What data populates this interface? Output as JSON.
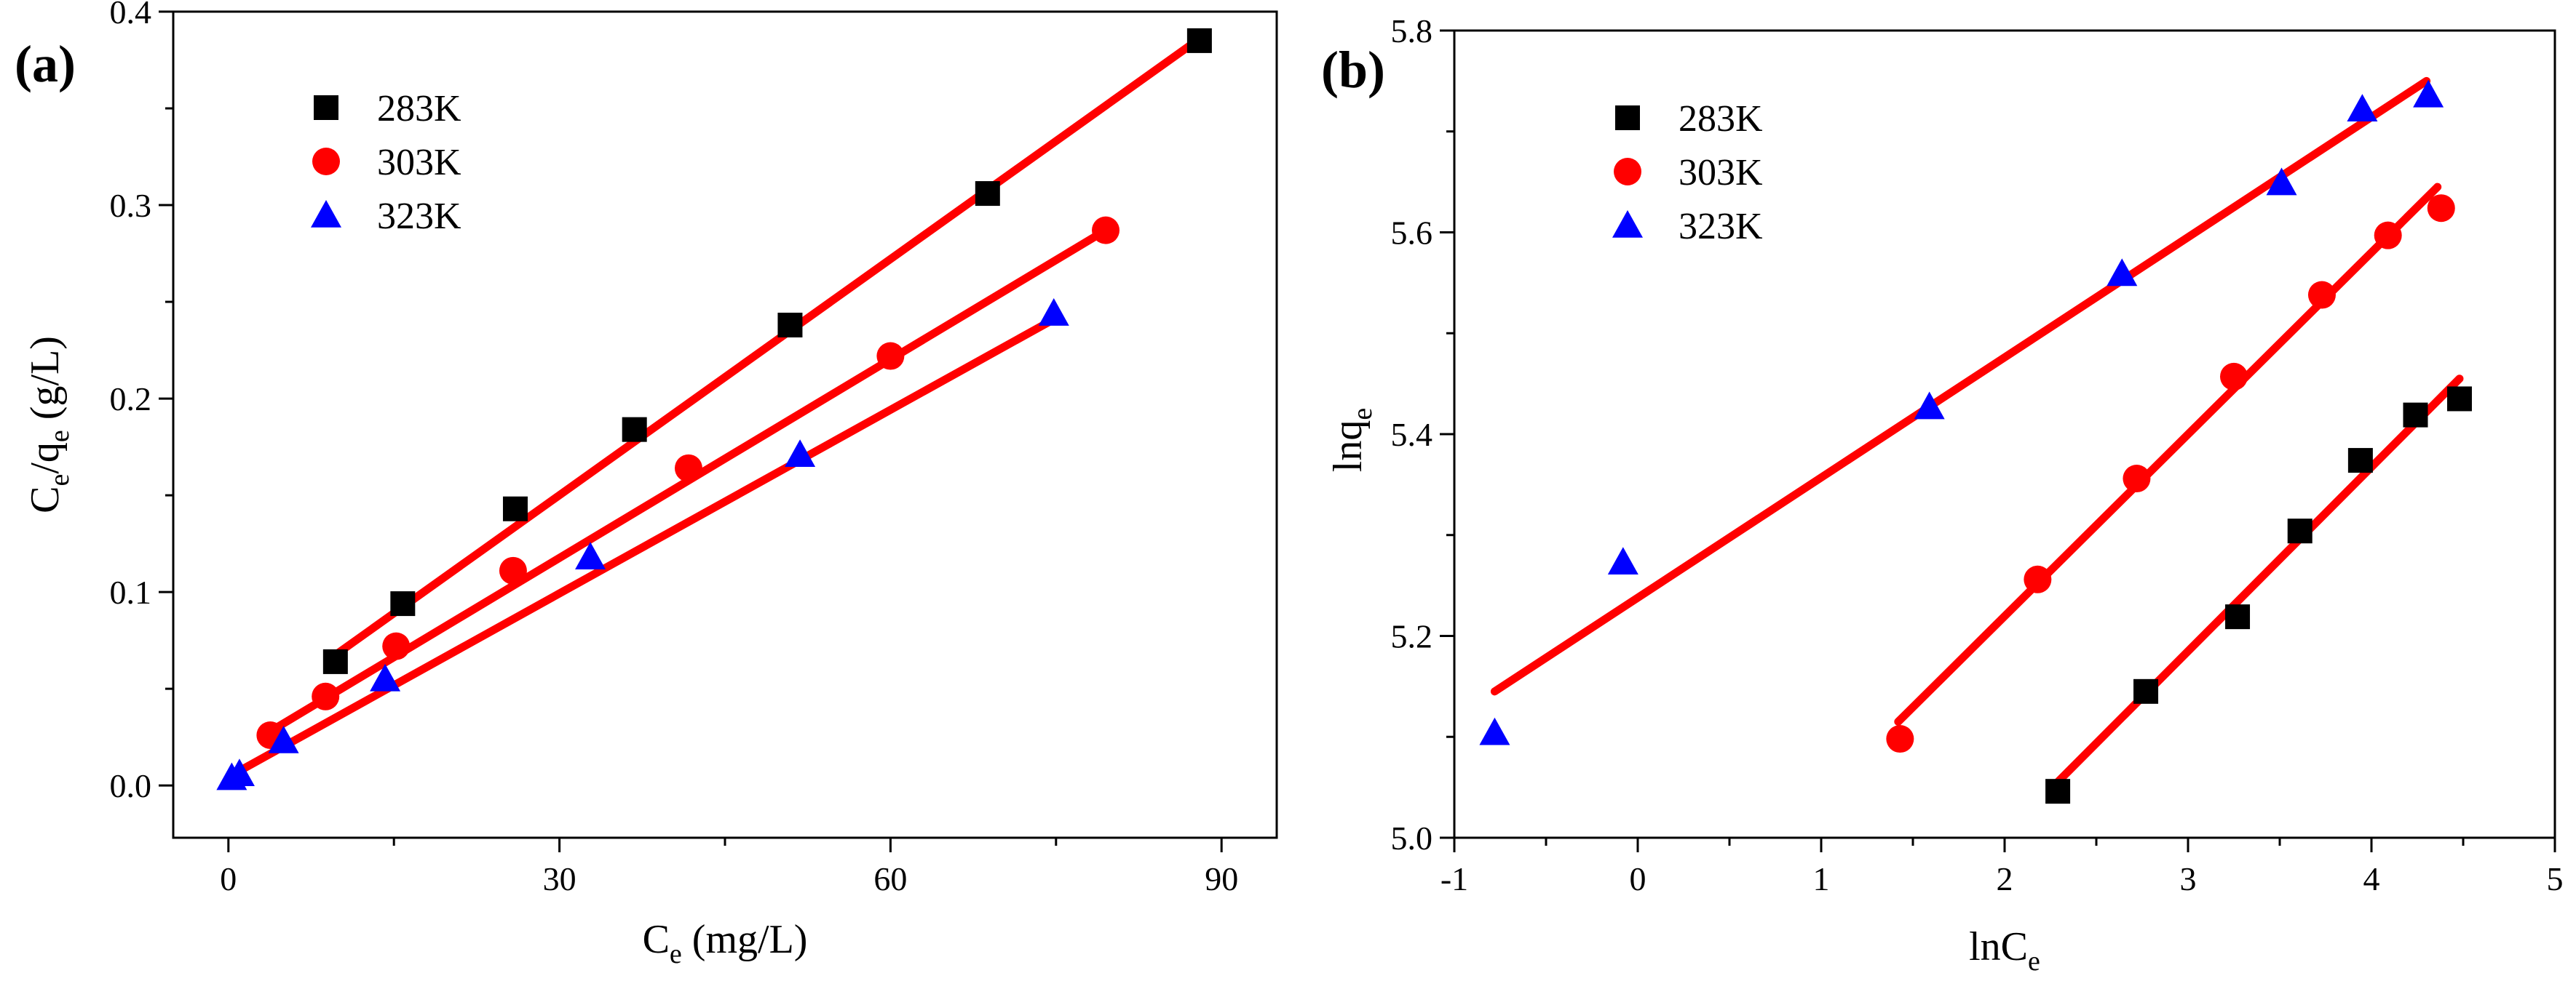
{
  "colors": {
    "283K": "#000000",
    "303K": "#ff0000",
    "323K": "#0000ff",
    "fit": "#ff0000",
    "axis": "#000000"
  },
  "chart_data": [
    {
      "type": "scatter",
      "panel_label": "(a)",
      "title": "",
      "xlabel": {
        "main": "C",
        "sub": "e",
        "rest": " (mg/L)"
      },
      "ylabel": {
        "p1": "C",
        "s1": "e",
        "p2": "/q",
        "s2": "e",
        "p3": " (g/L)"
      },
      "xlim": [
        -5,
        95
      ],
      "ylim": [
        -0.027,
        0.4
      ],
      "xticks": [
        0,
        30,
        60,
        90
      ],
      "xtick_labels": [
        "0",
        "30",
        "60",
        "90"
      ],
      "yticks": [
        0.0,
        0.1,
        0.2,
        0.3,
        0.4
      ],
      "ytick_labels": [
        "0.0",
        "0.1",
        "0.2",
        "0.3",
        "0.4"
      ],
      "grid": false,
      "legend": {
        "position": "top-left"
      },
      "series": [
        {
          "name": "283K",
          "marker": "square",
          "x": [
            9.7,
            15.8,
            26.0,
            36.8,
            50.9,
            68.8,
            88.0
          ],
          "y": [
            0.064,
            0.094,
            0.143,
            0.184,
            0.238,
            0.306,
            0.385
          ],
          "fit": {
            "x0": 9.7,
            "y0": 0.0675,
            "x1": 88.0,
            "y1": 0.386
          }
        },
        {
          "name": "303K",
          "marker": "circle",
          "x": [
            3.8,
            8.8,
            15.2,
            25.8,
            41.7,
            60.0,
            79.5
          ],
          "y": [
            0.026,
            0.046,
            0.072,
            0.111,
            0.164,
            0.222,
            0.287
          ],
          "fit": {
            "x0": 3.8,
            "y0": 0.028,
            "x1": 79.5,
            "y1": 0.287
          }
        },
        {
          "name": "323K",
          "marker": "triangle",
          "x": [
            0.3,
            1.0,
            5.0,
            14.2,
            32.8,
            51.8,
            74.8
          ],
          "y": [
            0.004,
            0.006,
            0.023,
            0.055,
            0.118,
            0.171,
            0.244
          ],
          "fit": {
            "x0": 0.2,
            "y0": 0.005,
            "x1": 74.8,
            "y1": 0.241
          }
        }
      ]
    },
    {
      "type": "scatter",
      "panel_label": "(b)",
      "title": "",
      "xlabel": {
        "main": "lnC",
        "sub": "e",
        "rest": ""
      },
      "ylabel": {
        "p1": "lnq",
        "s1": "e",
        "p2": "",
        "s2": "",
        "p3": ""
      },
      "xlim": [
        -1,
        5
      ],
      "ylim": [
        5.0,
        5.8
      ],
      "xticks": [
        -1,
        0,
        1,
        2,
        3,
        4,
        5
      ],
      "xtick_labels": [
        "-1",
        "0",
        "1",
        "2",
        "3",
        "4",
        "5"
      ],
      "yticks": [
        5.0,
        5.2,
        5.4,
        5.6,
        5.8
      ],
      "ytick_labels": [
        "5.0",
        "5.2",
        "5.4",
        "5.6",
        "5.8"
      ],
      "grid": false,
      "legend": {
        "position": "top-left"
      },
      "series": [
        {
          "name": "283K",
          "marker": "square",
          "x": [
            2.29,
            2.77,
            3.27,
            3.61,
            3.94,
            4.24,
            4.48
          ],
          "y": [
            5.046,
            5.145,
            5.219,
            5.304,
            5.374,
            5.419,
            5.435
          ],
          "fit": {
            "x0": 2.25,
            "y0": 5.048,
            "x1": 4.48,
            "y1": 5.455
          }
        },
        {
          "name": "303K",
          "marker": "circle",
          "x": [
            1.43,
            2.18,
            2.72,
            3.25,
            3.73,
            4.09,
            4.38
          ],
          "y": [
            5.098,
            5.256,
            5.356,
            5.457,
            5.538,
            5.597,
            5.624
          ],
          "fit": {
            "x0": 1.42,
            "y0": 5.115,
            "x1": 4.36,
            "y1": 5.645
          }
        },
        {
          "name": "323K",
          "marker": "triangle",
          "x": [
            -0.78,
            -0.08,
            1.59,
            2.64,
            3.51,
            3.95,
            4.31
          ],
          "y": [
            5.104,
            5.273,
            5.427,
            5.559,
            5.649,
            5.722,
            5.736
          ],
          "fit": {
            "x0": -0.78,
            "y0": 5.145,
            "x1": 4.3,
            "y1": 5.75
          }
        }
      ]
    }
  ]
}
